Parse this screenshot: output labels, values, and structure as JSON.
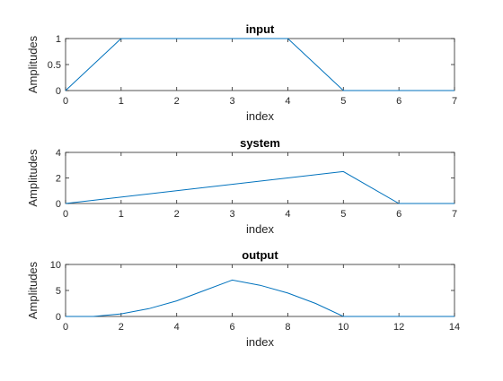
{
  "chart_data": [
    {
      "type": "line",
      "title": "input",
      "xlabel": "index",
      "ylabel": "Amplitudes",
      "xlim": [
        0,
        7
      ],
      "ylim": [
        0,
        1
      ],
      "xticks": [
        0,
        1,
        2,
        3,
        4,
        5,
        6,
        7
      ],
      "yticks": [
        0,
        0.5,
        1
      ],
      "grid": false,
      "color": "#0072BD",
      "series": [
        {
          "x": [
            0,
            1,
            4,
            5,
            7
          ],
          "y": [
            0,
            1,
            1,
            0,
            0
          ]
        }
      ]
    },
    {
      "type": "line",
      "title": "system",
      "xlabel": "index",
      "ylabel": "Amplitudes",
      "xlim": [
        0,
        7
      ],
      "ylim": [
        0,
        4
      ],
      "xticks": [
        0,
        1,
        2,
        3,
        4,
        5,
        6,
        7
      ],
      "yticks": [
        0,
        2,
        4
      ],
      "grid": false,
      "color": "#0072BD",
      "series": [
        {
          "x": [
            0,
            5,
            6,
            7
          ],
          "y": [
            0,
            2.5,
            0,
            0
          ]
        }
      ]
    },
    {
      "type": "line",
      "title": "output",
      "xlabel": "index",
      "ylabel": "Amplitudes",
      "xlim": [
        0,
        14
      ],
      "ylim": [
        0,
        10
      ],
      "xticks": [
        0,
        2,
        4,
        6,
        8,
        10,
        12,
        14
      ],
      "yticks": [
        0,
        5,
        10
      ],
      "grid": false,
      "color": "#0072BD",
      "series": [
        {
          "x": [
            0,
            1,
            2,
            3,
            4,
            5,
            6,
            7,
            8,
            9,
            10,
            11,
            12,
            13,
            14
          ],
          "y": [
            0,
            0,
            0.5,
            1.5,
            3,
            5,
            7,
            6,
            4.5,
            2.5,
            0,
            0,
            0,
            0,
            0
          ]
        }
      ]
    }
  ]
}
